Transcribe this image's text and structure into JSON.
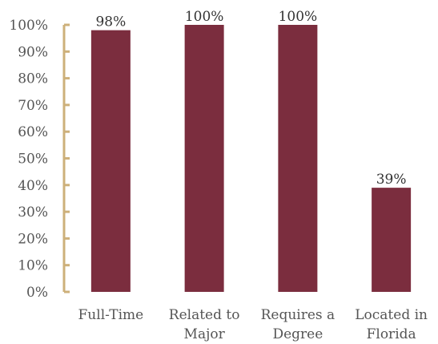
{
  "chart_data": {
    "type": "bar",
    "categories": [
      [
        "Full-Time"
      ],
      [
        "Related to",
        "Major"
      ],
      [
        "Requires a",
        "Degree"
      ],
      [
        "Located in",
        "Florida"
      ]
    ],
    "values": [
      98,
      100,
      100,
      39
    ],
    "data_labels": [
      "98%",
      "100%",
      "100%",
      "39%"
    ],
    "y_ticks": [
      "0%",
      "10%",
      "20%",
      "30%",
      "40%",
      "50%",
      "60%",
      "70%",
      "80%",
      "90%",
      "100%"
    ],
    "ylim": [
      0,
      100
    ],
    "title": "",
    "xlabel": "",
    "ylabel": "",
    "grid": false,
    "legend": "none",
    "colors": {
      "bar": "#7b2d3e",
      "axis": "#cdb07a"
    }
  }
}
